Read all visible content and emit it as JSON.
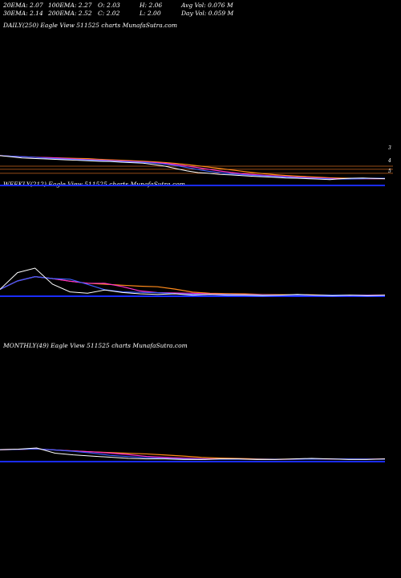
{
  "stats": {
    "row1": {
      "ema20": "20EMA: 2.07",
      "ema100": "100EMA: 2.27",
      "open": "O: 2.03",
      "high": "H: 2.06",
      "avgvol": "Avg Vol: 0.076  M"
    },
    "row2": {
      "ema30": "30EMA: 2.14",
      "ema200": "200EMA: 2.52",
      "close": "C: 2.02",
      "low": "L: 2.00",
      "dayvol": "Day Vol: 0.059 M"
    }
  },
  "panels": {
    "daily": {
      "label": "DAILY(250) Eagle  View  511525 charts MunafaSutra.com",
      "levels": [
        "3",
        "4",
        "5"
      ]
    },
    "weekly": {
      "label": "WEEKLY(212) Eagle  View  511525 charts MunafaSutra.com"
    },
    "monthly": {
      "label": "MONTHLY(49) Eagle  View  511525 charts MunafaSutra.com"
    }
  },
  "colors": {
    "price": "#ffffff",
    "ema_blue": "#3a5cff",
    "ema_pink": "#ff2fd0",
    "ema_orange": "#ff8a1a",
    "level": "#c8641e",
    "volume": "#1a2cff"
  },
  "chart_data": [
    {
      "type": "line",
      "name": "daily",
      "ylim": [
        1.7,
        3.3
      ],
      "series": [
        {
          "values": [
            3.0,
            2.95,
            2.9,
            2.88,
            2.86,
            2.84,
            2.82,
            2.8,
            2.78,
            2.76,
            2.75,
            2.72,
            2.7,
            2.68,
            2.62,
            2.55,
            2.45,
            2.35,
            2.28,
            2.25,
            2.2,
            2.18,
            2.15,
            2.12,
            2.1,
            2.08,
            2.05,
            2.04,
            2.02,
            2.0,
            1.98,
            2.02,
            2.04,
            2.05,
            2.03,
            2.02
          ]
        }
      ],
      "hlines": [
        2.55,
        2.42,
        2.25
      ]
    },
    {
      "type": "line",
      "name": "weekly",
      "ylim": [
        0,
        5
      ],
      "series": [
        {
          "values": [
            1.2,
            3.8,
            4.5,
            2.0,
            0.8,
            0.6,
            1.1,
            0.7,
            0.5,
            0.4,
            0.5,
            0.3,
            0.4,
            0.3,
            0.3,
            0.2,
            0.3,
            0.4,
            0.3,
            0.2,
            0.3,
            0.2,
            0.3
          ]
        }
      ]
    },
    {
      "type": "line",
      "name": "monthly",
      "ylim": [
        0,
        5
      ],
      "series": [
        {
          "values": [
            2.2,
            2.3,
            2.5,
            1.6,
            1.3,
            1.1,
            0.9,
            0.7,
            0.6,
            0.6,
            0.5,
            0.5,
            0.6,
            0.6,
            0.5,
            0.5,
            0.6,
            0.7,
            0.6,
            0.5,
            0.5,
            0.6
          ]
        }
      ]
    }
  ]
}
